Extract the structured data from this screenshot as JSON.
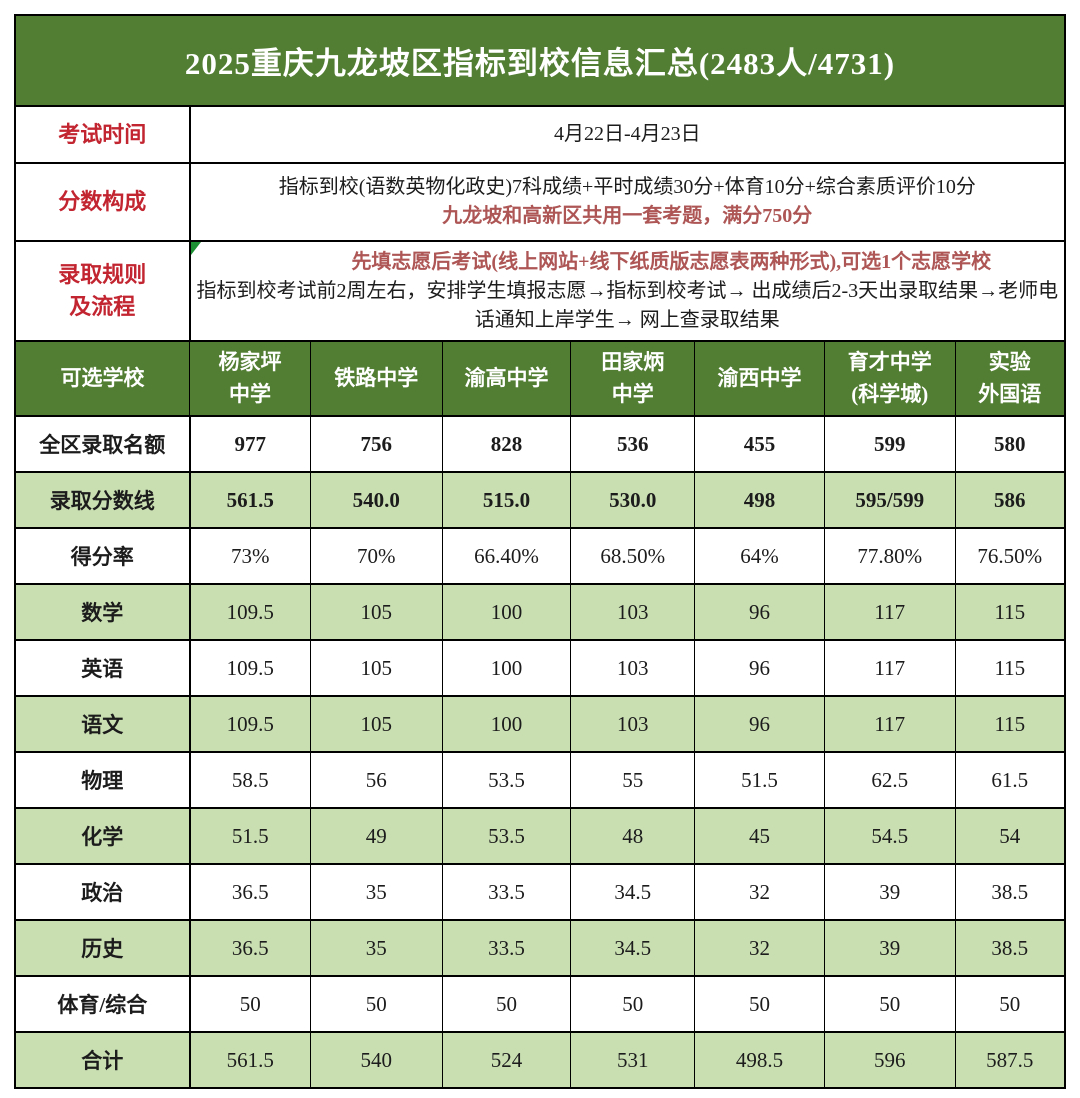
{
  "title": "2025重庆九龙坡区指标到校信息汇总(2483人/4731)",
  "info": {
    "exam_time": {
      "label": "考试时间",
      "value": "4月22日-4月23日"
    },
    "score_composition": {
      "label": "分数构成",
      "line1": "指标到校(语数英物化政史)7科成绩+平时成绩30分+体育10分+综合素质评价10分",
      "line2": "九龙坡和高新区共用一套考题，满分750分"
    },
    "admission_rules": {
      "label_line1": "录取规则",
      "label_line2": "及流程",
      "line1": "先填志愿后考试(线上网站+线下纸质版志愿表两种形式),可选1个志愿学校",
      "line2": "指标到校考试前2周左右，安排学生填报志愿→指标到校考试→ 出成绩后2-3天出录取结果→老师电话通知上岸学生→ 网上查录取结果"
    }
  },
  "table": {
    "header": [
      {
        "name": "可选学校",
        "lines": [
          "可选学校"
        ]
      },
      {
        "name": "杨家坪中学",
        "lines": [
          "杨家坪",
          "中学"
        ]
      },
      {
        "name": "铁路中学",
        "lines": [
          "铁路中学"
        ]
      },
      {
        "name": "渝高中学",
        "lines": [
          "渝高中学"
        ]
      },
      {
        "name": "田家炳中学",
        "lines": [
          "田家炳",
          "中学"
        ]
      },
      {
        "name": "渝西中学",
        "lines": [
          "渝西中学"
        ]
      },
      {
        "name": "育才中学(科学城)",
        "lines": [
          "育才中学",
          "(科学城)"
        ]
      },
      {
        "name": "实验外国语",
        "lines": [
          "实验",
          "外国语"
        ]
      }
    ],
    "rows": [
      {
        "label": "全区录取名额",
        "values": [
          "977",
          "756",
          "828",
          "536",
          "455",
          "599",
          "580"
        ],
        "shade": false,
        "bold": true
      },
      {
        "label": "录取分数线",
        "values": [
          "561.5",
          "540.0",
          "515.0",
          "530.0",
          "498",
          "595/599",
          "586"
        ],
        "shade": true,
        "bold": true
      },
      {
        "label": "得分率",
        "values": [
          "73%",
          "70%",
          "66.40%",
          "68.50%",
          "64%",
          "77.80%",
          "76.50%"
        ],
        "shade": false,
        "bold": false
      },
      {
        "label": "数学",
        "values": [
          "109.5",
          "105",
          "100",
          "103",
          "96",
          "117",
          "115"
        ],
        "shade": true,
        "bold": false
      },
      {
        "label": "英语",
        "values": [
          "109.5",
          "105",
          "100",
          "103",
          "96",
          "117",
          "115"
        ],
        "shade": false,
        "bold": false
      },
      {
        "label": "语文",
        "values": [
          "109.5",
          "105",
          "100",
          "103",
          "96",
          "117",
          "115"
        ],
        "shade": true,
        "bold": false
      },
      {
        "label": "物理",
        "values": [
          "58.5",
          "56",
          "53.5",
          "55",
          "51.5",
          "62.5",
          "61.5"
        ],
        "shade": false,
        "bold": false
      },
      {
        "label": "化学",
        "values": [
          "51.5",
          "49",
          "53.5",
          "48",
          "45",
          "54.5",
          "54"
        ],
        "shade": true,
        "bold": false
      },
      {
        "label": "政治",
        "values": [
          "36.5",
          "35",
          "33.5",
          "34.5",
          "32",
          "39",
          "38.5"
        ],
        "shade": false,
        "bold": false
      },
      {
        "label": "历史",
        "values": [
          "36.5",
          "35",
          "33.5",
          "34.5",
          "32",
          "39",
          "38.5"
        ],
        "shade": true,
        "bold": false
      },
      {
        "label": "体育/综合",
        "values": [
          "50",
          "50",
          "50",
          "50",
          "50",
          "50",
          "50"
        ],
        "shade": false,
        "bold": false
      },
      {
        "label": "合计",
        "values": [
          "561.5",
          "540",
          "524",
          "531",
          "498.5",
          "596",
          "587.5"
        ],
        "shade": true,
        "bold": false
      }
    ]
  },
  "colors": {
    "dark_green": "#527e33",
    "light_green": "#c9dfb2",
    "label_red": "#c22430",
    "accent_red": "#ad5655",
    "marker_green": "#1e9034"
  }
}
